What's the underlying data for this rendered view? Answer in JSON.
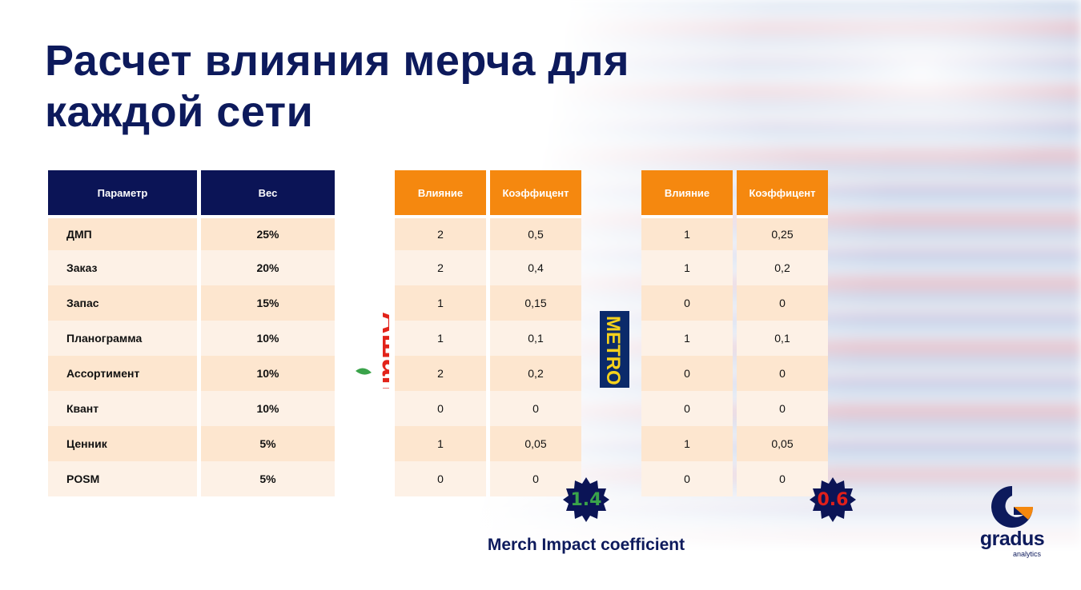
{
  "title": "Расчет влияния мерча для каждой сети",
  "params_table": {
    "headers": [
      "Параметр",
      "Вес"
    ],
    "rows": [
      {
        "name": "ДМП",
        "weight": "25%"
      },
      {
        "name": "Заказ",
        "weight": "20%"
      },
      {
        "name": "Запас",
        "weight": "15%"
      },
      {
        "name": "Планограмма",
        "weight": "10%"
      },
      {
        "name": "Ассортимент",
        "weight": "10%"
      },
      {
        "name": "Квант",
        "weight": "10%"
      },
      {
        "name": "Ценник",
        "weight": "5%"
      },
      {
        "name": "POSM",
        "weight": "5%"
      }
    ]
  },
  "auchan": {
    "logo_text": "Ашан",
    "headers": [
      "Влияние",
      "Коэффицент"
    ],
    "rows": [
      {
        "impact": "2",
        "coef": "0,5"
      },
      {
        "impact": "2",
        "coef": "0,4"
      },
      {
        "impact": "1",
        "coef": "0,15"
      },
      {
        "impact": "1",
        "coef": "0,1"
      },
      {
        "impact": "2",
        "coef": "0,2"
      },
      {
        "impact": "0",
        "coef": "0"
      },
      {
        "impact": "1",
        "coef": "0,05"
      },
      {
        "impact": "0",
        "coef": "0"
      }
    ],
    "total": "1.4",
    "total_color": "#3aa34a"
  },
  "metro": {
    "logo_text": "METRO",
    "headers": [
      "Влияние",
      "Коэффицент"
    ],
    "rows": [
      {
        "impact": "1",
        "coef": "0,25"
      },
      {
        "impact": "1",
        "coef": "0,2"
      },
      {
        "impact": "0",
        "coef": "0"
      },
      {
        "impact": "1",
        "coef": "0,1"
      },
      {
        "impact": "0",
        "coef": "0"
      },
      {
        "impact": "0",
        "coef": "0"
      },
      {
        "impact": "1",
        "coef": "0,05"
      },
      {
        "impact": "0",
        "coef": "0"
      }
    ],
    "total": "0.6",
    "total_color": "#e0201b"
  },
  "merch_label": "Merch Impact coefficient",
  "brand": {
    "name": "gradus",
    "sub": "analytics"
  },
  "colors": {
    "navy": "#0b1456",
    "orange": "#f5880f",
    "row_odd": "#fde6cf",
    "row_even": "#fdf1e6"
  }
}
